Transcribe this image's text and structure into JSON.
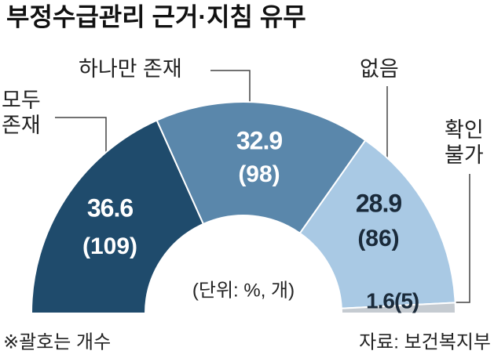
{
  "chart_data": {
    "type": "half-donut",
    "title": "부정수급관리 근거·지침 유무",
    "unit_note": "(단위: %, 개)",
    "footnote": "※괄호는 개수",
    "source": "자료: 보건복지부",
    "categories": [
      "모두 존재",
      "하나만 존재",
      "없음",
      "확인 불가"
    ],
    "values": [
      36.6,
      32.9,
      28.9,
      1.6
    ],
    "counts": [
      109,
      98,
      86,
      5
    ],
    "count_labels": [
      "(109)",
      "(98)",
      "(86)",
      "(5)"
    ],
    "colors": [
      "#1f4b6c",
      "#5a87ab",
      "#a9c9e4",
      "#c5cbd1"
    ]
  }
}
